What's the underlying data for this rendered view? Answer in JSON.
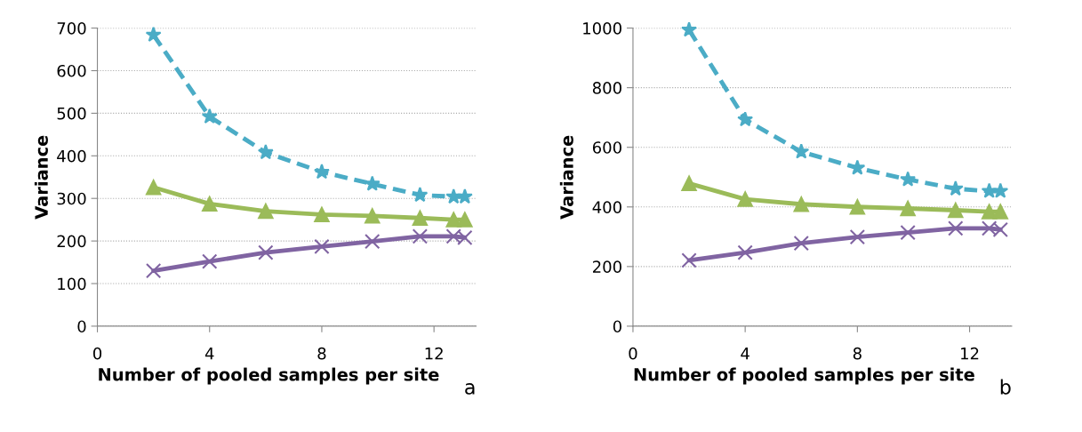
{
  "chart_data": [
    {
      "type": "line",
      "xlabel": "Number of pooled samples per site",
      "ylabel": "Variance",
      "annotations": [
        "a"
      ],
      "x": [
        2,
        4,
        6,
        8,
        9.8,
        11.5,
        12.7,
        13.1
      ],
      "xlim": [
        0,
        13.5
      ],
      "xticks": [
        0,
        4,
        8,
        12
      ],
      "ylim": [
        0,
        700
      ],
      "yticks": [
        0,
        100,
        200,
        300,
        400,
        500,
        600,
        700
      ],
      "grid": "y",
      "legend": false,
      "series": [
        {
          "color": "#4bacc6",
          "marker": "star",
          "line_style": "dashed",
          "values": [
            684,
            492,
            408,
            362,
            334,
            308,
            304,
            304
          ]
        },
        {
          "color": "#9bbb59",
          "marker": "triangle",
          "line_style": "solid",
          "values": [
            326,
            287,
            270,
            262,
            259,
            254,
            250,
            250
          ]
        },
        {
          "color": "#8064a2",
          "marker": "cross",
          "line_style": "solid",
          "values": [
            130,
            152,
            173,
            187,
            199,
            211,
            211,
            208
          ]
        }
      ]
    },
    {
      "type": "line",
      "xlabel": "Number of pooled samples per site",
      "ylabel": "Variance",
      "annotations": [
        "b"
      ],
      "x": [
        2,
        4,
        6,
        8,
        9.8,
        11.5,
        12.7,
        13.1
      ],
      "xlim": [
        0,
        13.5
      ],
      "xticks": [
        0,
        4,
        8,
        12
      ],
      "ylim": [
        0,
        1000
      ],
      "yticks": [
        0,
        200,
        400,
        600,
        800,
        1000
      ],
      "grid": "y",
      "legend": false,
      "series": [
        {
          "color": "#4bacc6",
          "marker": "star",
          "line_style": "dashed",
          "values": [
            994,
            693,
            585,
            531,
            492,
            461,
            453,
            453
          ]
        },
        {
          "color": "#9bbb59",
          "marker": "triangle",
          "line_style": "solid",
          "values": [
            479,
            426,
            409,
            400,
            395,
            389,
            384,
            384
          ]
        },
        {
          "color": "#8064a2",
          "marker": "cross",
          "line_style": "solid",
          "values": [
            221,
            247,
            278,
            299,
            314,
            328,
            328,
            324
          ]
        }
      ]
    }
  ]
}
